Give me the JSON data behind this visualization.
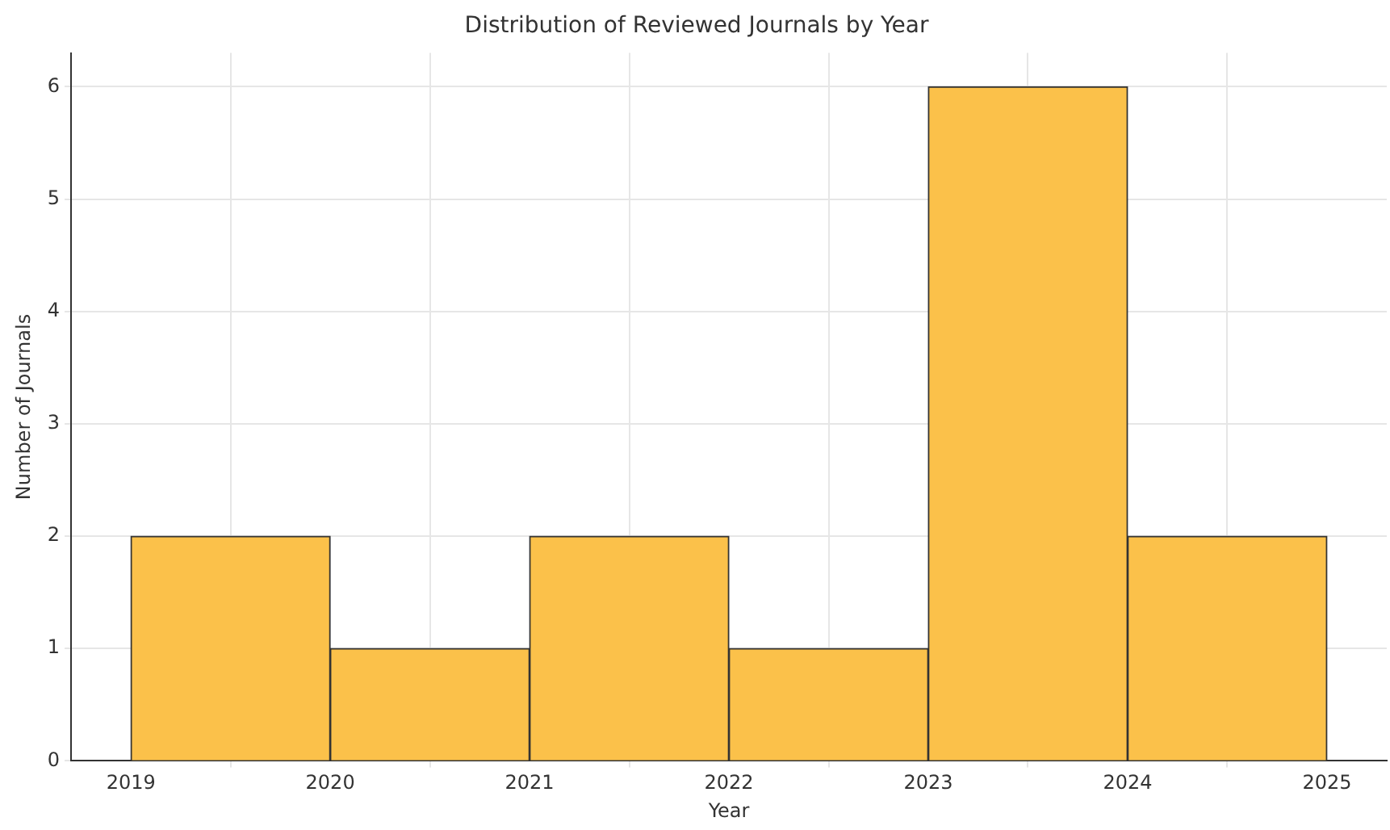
{
  "chart_data": {
    "type": "histogram",
    "title": "Distribution of Reviewed Journals by Year",
    "xlabel": "Year",
    "ylabel": "Number of Journals",
    "bins": [
      2019,
      2020,
      2021,
      2022,
      2023,
      2024,
      2025
    ],
    "values": [
      2,
      1,
      2,
      1,
      6,
      2
    ],
    "color": "#fbc14a",
    "xlim": [
      2018.7,
      2025.3
    ],
    "xticks": [
      2019,
      2020,
      2021,
      2022,
      2023,
      2024,
      2025
    ],
    "ylim": [
      0,
      6.3
    ],
    "yticks": [
      0,
      1,
      2,
      3,
      4,
      5,
      6
    ],
    "grid": true
  }
}
